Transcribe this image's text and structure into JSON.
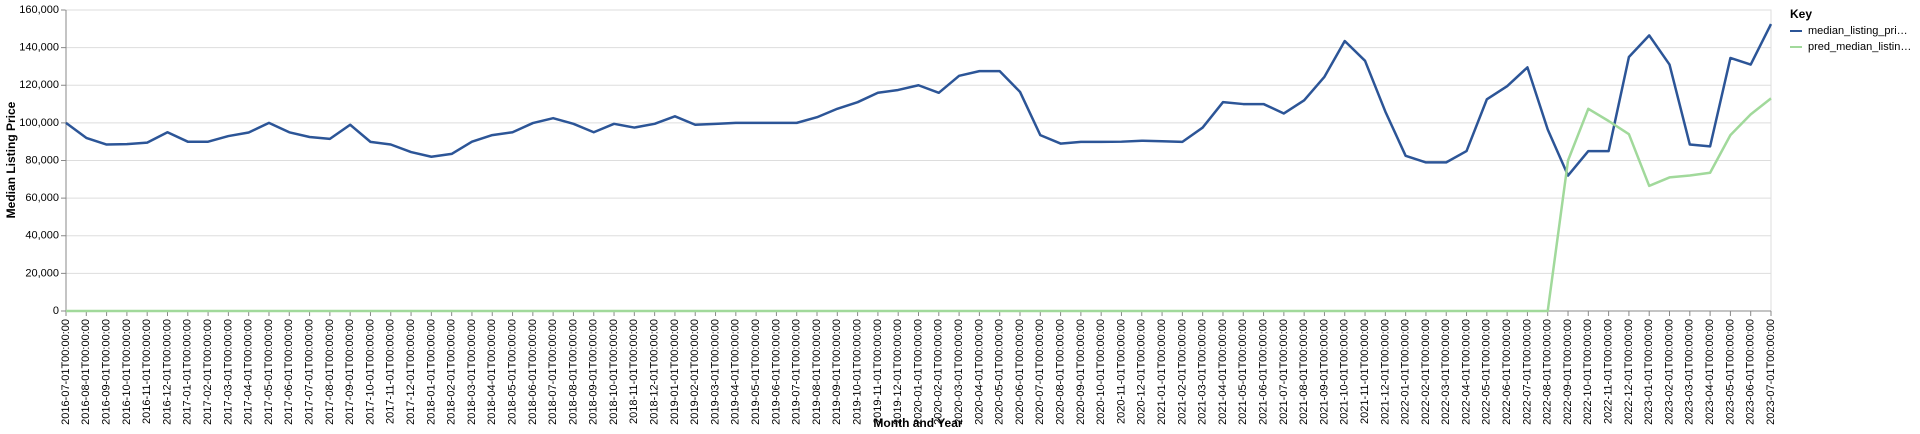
{
  "chart_data": {
    "type": "line",
    "y_label": "Median Listing Price",
    "x_label": "Month and Year",
    "legend_title": "Key",
    "legend_position": "right",
    "grid": true,
    "categories": [
      "2016-07-01T00:00:00",
      "2016-08-01T00:00:00",
      "2016-09-01T00:00:00",
      "2016-10-01T00:00:00",
      "2016-11-01T00:00:00",
      "2016-12-01T00:00:00",
      "2017-01-01T00:00:00",
      "2017-02-01T00:00:00",
      "2017-03-01T00:00:00",
      "2017-04-01T00:00:00",
      "2017-05-01T00:00:00",
      "2017-06-01T00:00:00",
      "2017-07-01T00:00:00",
      "2017-08-01T00:00:00",
      "2017-09-01T00:00:00",
      "2017-10-01T00:00:00",
      "2017-11-01T00:00:00",
      "2017-12-01T00:00:00",
      "2018-01-01T00:00:00",
      "2018-02-01T00:00:00",
      "2018-03-01T00:00:00",
      "2018-04-01T00:00:00",
      "2018-05-01T00:00:00",
      "2018-06-01T00:00:00",
      "2018-07-01T00:00:00",
      "2018-08-01T00:00:00",
      "2018-09-01T00:00:00",
      "2018-10-01T00:00:00",
      "2018-11-01T00:00:00",
      "2018-12-01T00:00:00",
      "2019-01-01T00:00:00",
      "2019-02-01T00:00:00",
      "2019-03-01T00:00:00",
      "2019-04-01T00:00:00",
      "2019-05-01T00:00:00",
      "2019-06-01T00:00:00",
      "2019-07-01T00:00:00",
      "2019-08-01T00:00:00",
      "2019-09-01T00:00:00",
      "2019-10-01T00:00:00",
      "2019-11-01T00:00:00",
      "2019-12-01T00:00:00",
      "2020-01-01T00:00:00",
      "2020-02-01T00:00:00",
      "2020-03-01T00:00:00",
      "2020-04-01T00:00:00",
      "2020-05-01T00:00:00",
      "2020-06-01T00:00:00",
      "2020-07-01T00:00:00",
      "2020-08-01T00:00:00",
      "2020-09-01T00:00:00",
      "2020-10-01T00:00:00",
      "2020-11-01T00:00:00",
      "2020-12-01T00:00:00",
      "2021-01-01T00:00:00",
      "2021-02-01T00:00:00",
      "2021-03-01T00:00:00",
      "2021-04-01T00:00:00",
      "2021-05-01T00:00:00",
      "2021-06-01T00:00:00",
      "2021-07-01T00:00:00",
      "2021-08-01T00:00:00",
      "2021-09-01T00:00:00",
      "2021-10-01T00:00:00",
      "2021-11-01T00:00:00",
      "2021-12-01T00:00:00",
      "2022-01-01T00:00:00",
      "2022-02-01T00:00:00",
      "2022-03-01T00:00:00",
      "2022-04-01T00:00:00",
      "2022-05-01T00:00:00",
      "2022-06-01T00:00:00",
      "2022-07-01T00:00:00",
      "2022-08-01T00:00:00",
      "2022-09-01T00:00:00",
      "2022-10-01T00:00:00",
      "2022-11-01T00:00:00",
      "2022-12-01T00:00:00",
      "2023-01-01T00:00:00",
      "2023-02-01T00:00:00",
      "2023-03-01T00:00:00",
      "2023-04-01T00:00:00",
      "2023-05-01T00:00:00",
      "2023-06-01T00:00:00",
      "2023-07-01T00:00:00"
    ],
    "series": [
      {
        "name": "median_listing_pri…",
        "color": "#2c5597",
        "values": [
          100000,
          92000,
          88500,
          88700,
          89500,
          95000,
          90000,
          90000,
          93000,
          94900,
          100000,
          95000,
          92500,
          91500,
          99000,
          89900,
          88500,
          84500,
          82000,
          83500,
          90000,
          93500,
          95000,
          99900,
          102500,
          99500,
          95000,
          99500,
          97500,
          99500,
          103500,
          99000,
          99500,
          100000,
          100000,
          100000,
          100000,
          103000,
          107500,
          111000,
          116000,
          117500,
          120000,
          116000,
          125000,
          127500,
          127500,
          116500,
          93500,
          89000,
          89900,
          89900,
          90000,
          90500,
          90200,
          89900,
          97500,
          111000,
          110000,
          110000,
          105000,
          112000,
          124500,
          143500,
          133000,
          106000,
          82500,
          79000,
          79000,
          85000,
          112500,
          119500,
          129500,
          96500,
          72000,
          85000,
          85000,
          135000,
          146500,
          131000,
          88500,
          87500,
          134500,
          131000,
          152500
        ]
      },
      {
        "name": "pred_median_listin…",
        "color": "#a1d99b",
        "values": [
          0,
          0,
          0,
          0,
          0,
          0,
          0,
          0,
          0,
          0,
          0,
          0,
          0,
          0,
          0,
          0,
          0,
          0,
          0,
          0,
          0,
          0,
          0,
          0,
          0,
          0,
          0,
          0,
          0,
          0,
          0,
          0,
          0,
          0,
          0,
          0,
          0,
          0,
          0,
          0,
          0,
          0,
          0,
          0,
          0,
          0,
          0,
          0,
          0,
          0,
          0,
          0,
          0,
          0,
          0,
          0,
          0,
          0,
          0,
          0,
          0,
          0,
          0,
          0,
          0,
          0,
          0,
          0,
          0,
          0,
          0,
          0,
          0,
          0,
          80000,
          107500,
          101000,
          94000,
          66500,
          71000,
          72000,
          73500,
          93500,
          104500,
          113000
        ]
      }
    ],
    "ylim": [
      0,
      160000
    ],
    "yticks": [
      0,
      {
        "value": 20000,
        "label": "20,000"
      },
      {
        "value": 40000,
        "label": "40,000"
      },
      {
        "value": 60000,
        "label": "60,000"
      },
      {
        "value": 80000,
        "label": "80,000"
      },
      {
        "value": 100000,
        "label": "100,000"
      },
      {
        "value": 120000,
        "label": "120,000"
      },
      {
        "value": 140000,
        "label": "140,000"
      },
      {
        "value": 160000,
        "label": "160,000"
      }
    ]
  }
}
